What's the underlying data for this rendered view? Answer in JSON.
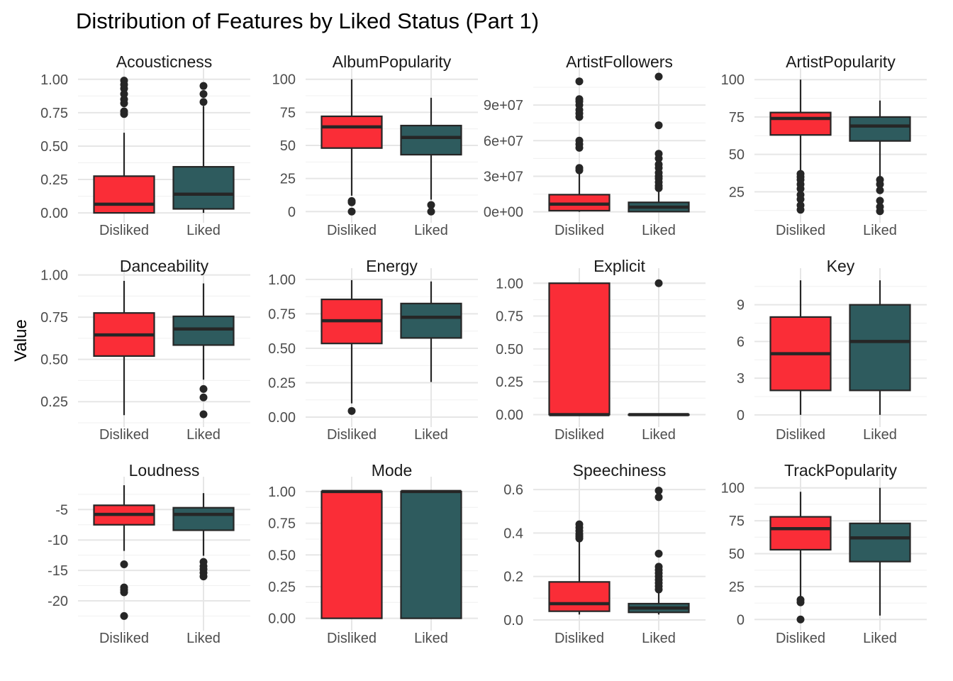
{
  "chart_data": {
    "type": "box",
    "title": "Distribution of Features by Liked Status (Part 1)",
    "ylabel": "Value",
    "xlabel": "",
    "categories": [
      "Disliked",
      "Liked"
    ],
    "colors": {
      "Disliked": "#fa2d37",
      "Liked": "#2e5b5e",
      "stroke": "#262626"
    },
    "grid": true,
    "legend": "none",
    "facets": [
      {
        "name": "Acousticness",
        "ylim": [
          -0.01,
          1.02
        ],
        "yticks": [
          {
            "v": 0,
            "t": "0.00"
          },
          {
            "v": 0.25,
            "t": "0.25"
          },
          {
            "v": 0.5,
            "t": "0.50"
          },
          {
            "v": 0.75,
            "t": "0.75"
          },
          {
            "v": 1,
            "t": "1.00"
          }
        ],
        "boxes": [
          {
            "cat": "Disliked",
            "lw": 0.0,
            "q1": 0.0,
            "med": 0.065,
            "q3": 0.275,
            "uw": 0.6,
            "out": [
              0.74,
              0.76,
              0.82,
              0.85,
              0.89,
              0.93,
              0.96,
              0.99
            ]
          },
          {
            "cat": "Liked",
            "lw": 0.0,
            "q1": 0.03,
            "med": 0.14,
            "q3": 0.345,
            "uw": 0.8,
            "out": [
              0.83,
              0.89,
              0.95
            ]
          }
        ]
      },
      {
        "name": "AlbumPopularity",
        "ylim": [
          -2,
          102
        ],
        "yticks": [
          {
            "v": 0,
            "t": "0"
          },
          {
            "v": 25,
            "t": "25"
          },
          {
            "v": 50,
            "t": "50"
          },
          {
            "v": 75,
            "t": "75"
          },
          {
            "v": 100,
            "t": "100"
          }
        ],
        "boxes": [
          {
            "cat": "Disliked",
            "lw": 12,
            "q1": 48,
            "med": 64,
            "q3": 72,
            "uw": 100,
            "out": [
              0,
              7,
              8
            ]
          },
          {
            "cat": "Liked",
            "lw": 9,
            "q1": 43,
            "med": 56,
            "q3": 65,
            "uw": 86,
            "out": [
              0,
              5
            ]
          }
        ]
      },
      {
        "name": "ArtistFollowers",
        "ylim": [
          -2000000,
          114000000
        ],
        "yticks": [
          {
            "v": 0,
            "t": "0e+00"
          },
          {
            "v": 30000000,
            "t": "3e+07"
          },
          {
            "v": 60000000,
            "t": "6e+07"
          },
          {
            "v": 90000000,
            "t": "9e+07"
          }
        ],
        "boxes": [
          {
            "cat": "Disliked",
            "lw": 0,
            "q1": 1000000,
            "med": 6500000,
            "q3": 14500000,
            "uw": 33000000,
            "out": [
              35000000,
              37000000,
              54000000,
              57000000,
              60000000,
              80000000,
              83000000,
              86000000,
              90000000,
              93000000,
              95000000,
              110000000
            ]
          },
          {
            "cat": "Liked",
            "lw": 0,
            "q1": 200000,
            "med": 4000000,
            "q3": 8000000,
            "uw": 18000000,
            "out": [
              20000000,
              22000000,
              25000000,
              28000000,
              30000000,
              33000000,
              37000000,
              40000000,
              45000000,
              49000000,
              73000000,
              114000000
            ]
          }
        ]
      },
      {
        "name": "ArtistPopularity",
        "ylim": [
          10,
          102
        ],
        "yticks": [
          {
            "v": 25,
            "t": "25"
          },
          {
            "v": 50,
            "t": "50"
          },
          {
            "v": 75,
            "t": "75"
          },
          {
            "v": 100,
            "t": "100"
          }
        ],
        "boxes": [
          {
            "cat": "Disliked",
            "lw": 39,
            "q1": 63,
            "med": 74,
            "q3": 78,
            "uw": 100,
            "out": [
              13,
              16,
              20,
              23,
              27,
              30,
              33,
              35,
              37
            ]
          },
          {
            "cat": "Liked",
            "lw": 35,
            "q1": 59,
            "med": 69,
            "q3": 75,
            "uw": 86,
            "out": [
              12,
              15,
              19,
              26,
              30,
              33
            ]
          }
        ]
      },
      {
        "name": "Danceability",
        "ylim": [
          0.15,
          0.99
        ],
        "yticks": [
          {
            "v": 0.25,
            "t": "0.25"
          },
          {
            "v": 0.5,
            "t": "0.50"
          },
          {
            "v": 0.75,
            "t": "0.75"
          },
          {
            "v": 1,
            "t": "1.00"
          }
        ],
        "boxes": [
          {
            "cat": "Disliked",
            "lw": 0.17,
            "q1": 0.52,
            "med": 0.645,
            "q3": 0.775,
            "uw": 0.965,
            "out": []
          },
          {
            "cat": "Liked",
            "lw": 0.38,
            "q1": 0.585,
            "med": 0.68,
            "q3": 0.755,
            "uw": 0.95,
            "out": [
              0.175,
              0.275,
              0.325
            ]
          }
        ]
      },
      {
        "name": "Energy",
        "ylim": [
          -0.01,
          1.02
        ],
        "yticks": [
          {
            "v": 0,
            "t": "0.00"
          },
          {
            "v": 0.25,
            "t": "0.25"
          },
          {
            "v": 0.5,
            "t": "0.50"
          },
          {
            "v": 0.75,
            "t": "0.75"
          },
          {
            "v": 1,
            "t": "1.00"
          }
        ],
        "boxes": [
          {
            "cat": "Disliked",
            "lw": 0.1,
            "q1": 0.535,
            "med": 0.7,
            "q3": 0.855,
            "uw": 0.995,
            "out": [
              0.045
            ]
          },
          {
            "cat": "Liked",
            "lw": 0.255,
            "q1": 0.575,
            "med": 0.725,
            "q3": 0.825,
            "uw": 0.985,
            "out": []
          }
        ]
      },
      {
        "name": "Explicit",
        "ylim": [
          -0.03,
          1.05
        ],
        "yticks": [
          {
            "v": 0,
            "t": "0.00"
          },
          {
            "v": 0.25,
            "t": "0.25"
          },
          {
            "v": 0.5,
            "t": "0.50"
          },
          {
            "v": 0.75,
            "t": "0.75"
          },
          {
            "v": 1,
            "t": "1.00"
          }
        ],
        "boxes": [
          {
            "cat": "Disliked",
            "lw": 0,
            "q1": 0,
            "med": 0,
            "q3": 1,
            "uw": 1,
            "out": []
          },
          {
            "cat": "Liked",
            "lw": 0,
            "q1": 0,
            "med": 0,
            "q3": 0,
            "uw": 0,
            "out": [
              1
            ]
          }
        ]
      },
      {
        "name": "Key",
        "ylim": [
          -0.3,
          11.3
        ],
        "yticks": [
          {
            "v": 0,
            "t": "0"
          },
          {
            "v": 3,
            "t": "3"
          },
          {
            "v": 6,
            "t": "6"
          },
          {
            "v": 9,
            "t": "9"
          }
        ],
        "boxes": [
          {
            "cat": "Disliked",
            "lw": 0,
            "q1": 2,
            "med": 5,
            "q3": 8,
            "uw": 11,
            "out": []
          },
          {
            "cat": "Liked",
            "lw": 0,
            "q1": 2,
            "med": 6,
            "q3": 9,
            "uw": 11,
            "out": []
          }
        ]
      },
      {
        "name": "Loudness",
        "ylim": [
          -23.5,
          -1
        ],
        "yticks": [
          {
            "v": -20,
            "t": "-20"
          },
          {
            "v": -15,
            "t": "-15"
          },
          {
            "v": -10,
            "t": "-10"
          },
          {
            "v": -5,
            "t": "-5"
          }
        ],
        "boxes": [
          {
            "cat": "Disliked",
            "lw": -11.8,
            "q1": -7.5,
            "med": -5.8,
            "q3": -4.3,
            "uw": -1.0,
            "out": [
              -14.0,
              -17.8,
              -18.2,
              -18.6,
              -22.5
            ]
          },
          {
            "cat": "Liked",
            "lw": -12.6,
            "q1": -8.4,
            "med": -5.8,
            "q3": -4.7,
            "uw": -2.3,
            "out": [
              -13.6,
              -14.3,
              -14.8,
              -15.4,
              -16.0
            ]
          }
        ]
      },
      {
        "name": "Mode",
        "ylim": [
          -0.03,
          1.05
        ],
        "yticks": [
          {
            "v": 0,
            "t": "0.00"
          },
          {
            "v": 0.25,
            "t": "0.25"
          },
          {
            "v": 0.5,
            "t": "0.50"
          },
          {
            "v": 0.75,
            "t": "0.75"
          },
          {
            "v": 1,
            "t": "1.00"
          }
        ],
        "boxes": [
          {
            "cat": "Disliked",
            "lw": 0,
            "q1": 0,
            "med": 1,
            "q3": 1,
            "uw": 1,
            "out": []
          },
          {
            "cat": "Liked",
            "lw": 0,
            "q1": 0,
            "med": 1,
            "q3": 1,
            "uw": 1,
            "out": []
          }
        ]
      },
      {
        "name": "Speechiness",
        "ylim": [
          -0.01,
          0.62
        ],
        "yticks": [
          {
            "v": 0,
            "t": "0.0"
          },
          {
            "v": 0.2,
            "t": "0.2"
          },
          {
            "v": 0.4,
            "t": "0.4"
          },
          {
            "v": 0.6,
            "t": "0.6"
          }
        ],
        "boxes": [
          {
            "cat": "Disliked",
            "lw": 0.025,
            "q1": 0.04,
            "med": 0.075,
            "q3": 0.175,
            "uw": 0.365,
            "out": [
              0.375,
              0.385,
              0.395,
              0.41,
              0.425,
              0.44
            ]
          },
          {
            "cat": "Liked",
            "lw": 0.025,
            "q1": 0.035,
            "med": 0.055,
            "q3": 0.075,
            "uw": 0.13,
            "out": [
              0.14,
              0.155,
              0.17,
              0.185,
              0.2,
              0.215,
              0.23,
              0.245,
              0.305,
              0.565,
              0.595
            ]
          }
        ]
      },
      {
        "name": "TrackPopularity",
        "ylim": [
          -2,
          102
        ],
        "yticks": [
          {
            "v": 0,
            "t": "0"
          },
          {
            "v": 25,
            "t": "25"
          },
          {
            "v": 50,
            "t": "50"
          },
          {
            "v": 75,
            "t": "75"
          },
          {
            "v": 100,
            "t": "100"
          }
        ],
        "boxes": [
          {
            "cat": "Disliked",
            "lw": 17,
            "q1": 53,
            "med": 69,
            "q3": 78,
            "uw": 97,
            "out": [
              0,
              13,
              15
            ]
          },
          {
            "cat": "Liked",
            "lw": 3,
            "q1": 44,
            "med": 62,
            "q3": 73,
            "uw": 100,
            "out": []
          }
        ]
      }
    ]
  }
}
